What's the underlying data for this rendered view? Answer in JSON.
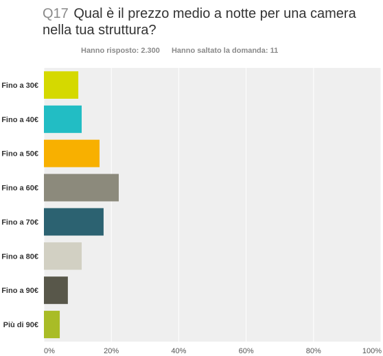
{
  "header": {
    "question_number": "Q17",
    "question_text": "Qual è il prezzo medio a notte per una camera nella tua struttura?",
    "answered": "Hanno risposto: 2.300",
    "skipped": "Hanno saltato la domanda: 11"
  },
  "chart_data": {
    "type": "bar",
    "orientation": "horizontal",
    "categories": [
      "Fino a 30€",
      "Fino a 40€",
      "Fino a 50€",
      "Fino a 60€",
      "Fino a 70€",
      "Fino a 80€",
      "Fino a 90€",
      "Più di 90€"
    ],
    "values": [
      10.2,
      11.2,
      16.5,
      22.2,
      17.7,
      11.2,
      7.1,
      4.7
    ],
    "colors": [
      "#d5d900",
      "#22bdc4",
      "#f8b000",
      "#8c8a7c",
      "#2c6271",
      "#d2d0c3",
      "#58574a",
      "#a9bc26"
    ],
    "xlim": [
      0,
      100
    ],
    "xticks": [
      "0%",
      "20%",
      "40%",
      "60%",
      "80%",
      "100%"
    ],
    "grid": true
  }
}
